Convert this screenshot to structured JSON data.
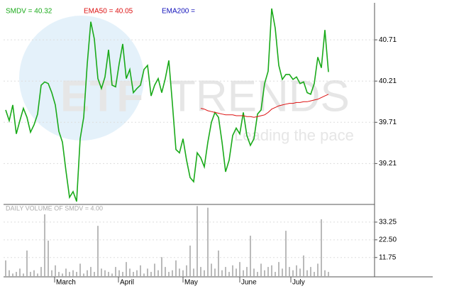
{
  "chart_data": [
    {
      "type": "line",
      "watermark": [
        "ETF",
        "TRENDS",
        "Leading the pace"
      ],
      "xlim": [
        -0.6,
        104
      ],
      "ylim": [
        38.74,
        41.15
      ],
      "yticks": [
        39.21,
        39.71,
        40.21,
        40.71
      ],
      "grid": true,
      "series": [
        {
          "name": "SMDV = 40.32",
          "color": "#1aaa1a",
          "values": [
            39.86,
            39.73,
            39.92,
            39.57,
            39.73,
            39.88,
            39.77,
            39.59,
            39.68,
            39.81,
            40.16,
            40.2,
            40.18,
            40.07,
            39.92,
            39.6,
            39.47,
            39.12,
            38.8,
            38.87,
            38.75,
            39.51,
            39.77,
            40.42,
            40.93,
            40.72,
            40.24,
            40.12,
            40.26,
            40.59,
            40.16,
            40.14,
            40.42,
            40.66,
            40.24,
            40.35,
            40.07,
            40.12,
            40.16,
            40.35,
            40.4,
            40.03,
            40.16,
            40.24,
            40.07,
            40.24,
            40.46,
            39.94,
            39.38,
            39.34,
            39.51,
            39.25,
            39.04,
            38.99,
            39.34,
            39.28,
            39.17,
            39.47,
            39.71,
            39.83,
            39.77,
            39.47,
            39.11,
            39.25,
            39.55,
            39.64,
            39.57,
            39.83,
            39.55,
            39.43,
            39.51,
            39.81,
            39.86,
            40.18,
            40.33,
            41.09,
            40.85,
            40.4,
            40.23,
            40.29,
            40.29,
            40.23,
            40.26,
            40.18,
            40.2,
            40.07,
            40.05,
            40.18,
            40.5,
            40.37,
            40.83,
            40.32
          ]
        },
        {
          "name": "EMA50 = 40.05",
          "color": "#dd1111",
          "values": [
            null,
            null,
            null,
            null,
            null,
            null,
            null,
            null,
            null,
            null,
            null,
            null,
            null,
            null,
            null,
            null,
            null,
            null,
            null,
            null,
            null,
            null,
            null,
            null,
            null,
            null,
            null,
            null,
            null,
            null,
            null,
            null,
            null,
            null,
            null,
            null,
            null,
            null,
            null,
            null,
            null,
            null,
            null,
            null,
            null,
            null,
            null,
            null,
            null,
            null,
            null,
            null,
            null,
            null,
            null,
            39.88,
            39.87,
            39.85,
            39.84,
            39.83,
            39.82,
            39.81,
            39.8,
            39.8,
            39.8,
            39.79,
            39.79,
            39.79,
            39.78,
            39.78,
            39.77,
            39.78,
            39.79,
            39.8,
            39.83,
            39.87,
            39.89,
            39.91,
            39.92,
            39.93,
            39.94,
            39.94,
            39.95,
            39.95,
            39.96,
            39.96,
            39.97,
            39.98,
            39.99,
            40.01,
            40.03,
            40.05
          ]
        },
        {
          "name": "EMA200 =",
          "color": "#1111bb",
          "values": []
        }
      ]
    },
    {
      "type": "bar",
      "title": "DAILY VOLUME OF SMDV = 4.00",
      "color": "#aaaaaa",
      "xlim": [
        -0.6,
        104
      ],
      "ylim": [
        0,
        44
      ],
      "yticks": [
        11.75,
        {
          "value": 22.5,
          "label": "22.50"
        },
        33.25
      ],
      "xticks": [
        {
          "value": 13.8,
          "label": "March"
        },
        {
          "value": 31.8,
          "label": "April"
        },
        {
          "value": 50,
          "label": "May"
        },
        {
          "value": 66,
          "label": "June"
        },
        {
          "value": 80.4,
          "label": "July"
        }
      ],
      "grid": true,
      "values": [
        10,
        4,
        2,
        3,
        5,
        2,
        16,
        3,
        4,
        2,
        6,
        38,
        22,
        4,
        7,
        3,
        2,
        5,
        3,
        4,
        3,
        8,
        2,
        4,
        6,
        3,
        31,
        5,
        4,
        3,
        2,
        6,
        4,
        3,
        9,
        5,
        3,
        4,
        7,
        2,
        5,
        3,
        8,
        4,
        12,
        6,
        3,
        4,
        10,
        5,
        4,
        7,
        19,
        5,
        43,
        6,
        4,
        42,
        8,
        5,
        16,
        4,
        6,
        3,
        7,
        5,
        9,
        4,
        6,
        25,
        5,
        3,
        8,
        4,
        6,
        7,
        3,
        9,
        5,
        28,
        6,
        4,
        7,
        5,
        13,
        4,
        6,
        3,
        8,
        35,
        4,
        3
      ]
    }
  ]
}
